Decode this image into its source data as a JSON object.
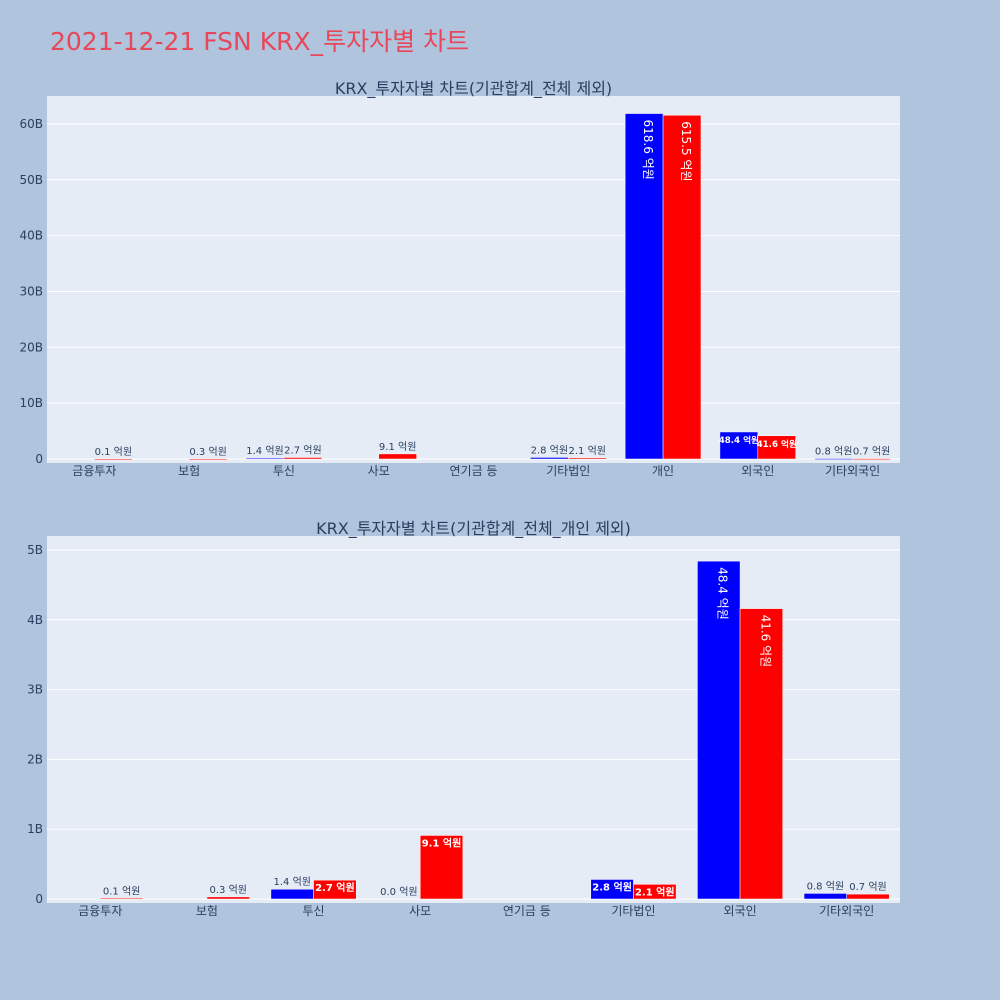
{
  "page": {
    "title": "2021-12-21 FSN KRX_투자자별 차트"
  },
  "colors": {
    "buy": "#0000ff",
    "sell": "#ff0000",
    "plot_bg": "#e5ecf6",
    "page_bg": "#b0c4de",
    "title": "#e8475a"
  },
  "chart_data": [
    {
      "type": "bar",
      "title": "KRX_투자자별 차트(기관합계_전체 제외)",
      "categories": [
        "금융투자",
        "보험",
        "투신",
        "사모",
        "연기금 등",
        "기타법인",
        "개인",
        "외국인",
        "기타외국인"
      ],
      "ylim": [
        0,
        65
      ],
      "yticks": [
        0,
        10,
        20,
        30,
        40,
        50,
        60
      ],
      "ytick_labels": [
        "0",
        "10B",
        "20B",
        "30B",
        "40B",
        "50B",
        "60B"
      ],
      "grid": true,
      "series": [
        {
          "color": "#0000ff",
          "values": [
            0,
            0,
            0.14,
            0,
            0,
            0.28,
            61.86,
            4.84,
            0.08
          ],
          "labels": [
            "",
            "",
            "1.4 억원",
            "",
            "",
            "2.8 억원",
            "618.6 억원",
            "48.4 억원",
            "0.8 억원"
          ]
        },
        {
          "color": "#ff0000",
          "values": [
            0.01,
            0.03,
            0.27,
            0.91,
            0,
            0.21,
            61.55,
            4.16,
            0.07
          ],
          "labels": [
            "0.1 억원",
            "0.3 억원",
            "2.7 억원",
            "9.1 억원",
            "",
            "2.1 억원",
            "615.5 억원",
            "41.6 억원",
            "0.7 억원"
          ]
        }
      ]
    },
    {
      "type": "bar",
      "title": "KRX_투자자별 차트(기관합계_전체_개인 제외)",
      "categories": [
        "금융투자",
        "보험",
        "투신",
        "사모",
        "연기금 등",
        "기타법인",
        "외국인",
        "기타외국인"
      ],
      "ylim": [
        0,
        5.2
      ],
      "yticks": [
        0,
        1,
        2,
        3,
        4,
        5
      ],
      "ytick_labels": [
        "0",
        "1B",
        "2B",
        "3B",
        "4B",
        "5B"
      ],
      "grid": true,
      "series": [
        {
          "color": "#0000ff",
          "values": [
            0,
            0,
            0.14,
            0,
            0,
            0.28,
            4.84,
            0.08
          ],
          "labels": [
            "",
            "",
            "1.4 억원",
            "0.0 억원",
            "",
            "2.8 억원",
            "48.4 억원",
            "0.8 억원"
          ]
        },
        {
          "color": "#ff0000",
          "values": [
            0.01,
            0.03,
            0.27,
            0.91,
            0,
            0.21,
            4.16,
            0.07
          ],
          "labels": [
            "0.1 억원",
            "0.3 억원",
            "2.7 억원",
            "9.1 억원",
            "",
            "2.1 억원",
            "41.6 억원",
            "0.7 억원"
          ]
        }
      ]
    }
  ]
}
